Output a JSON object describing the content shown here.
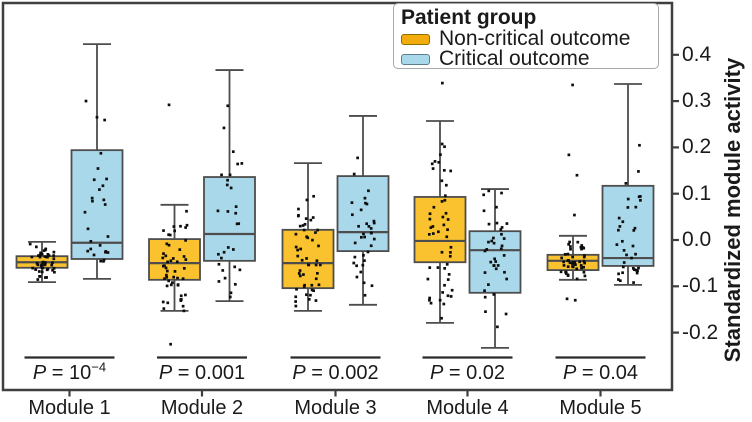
{
  "figure": {
    "background": "#ffffff",
    "panel_border_color": "#3f3f3f",
    "point_color": "#0d0d0d"
  },
  "legend": {
    "title": "Patient group",
    "entries": [
      {
        "label": "Non-critical outcome",
        "swatch_fill": "#F2AC0D",
        "swatch_border": "#8F6E00"
      },
      {
        "label": "Critical outcome",
        "swatch_fill": "#A9D8EA",
        "swatch_border": "#5E7E8C"
      }
    ]
  },
  "y_axis": {
    "title": "Standardized module activity",
    "side": "right",
    "tick_labels": [
      "0.4",
      "0.3",
      "0.2",
      "0.1",
      "0.0",
      "-0.1",
      "-0.2"
    ],
    "tick_values": [
      0.4,
      0.3,
      0.2,
      0.1,
      0.0,
      -0.1,
      -0.2
    ],
    "range": [
      -0.324,
      0.512
    ]
  },
  "chart_data": {
    "type": "boxplot",
    "categories": [
      "Module 1",
      "Module 2",
      "Module 3",
      "Module 4",
      "Module 5"
    ],
    "p_labels": [
      {
        "text": "P = 10",
        "sup": "−4"
      },
      {
        "text": "P = 0.001",
        "sup": ""
      },
      {
        "text": "P = 0.002",
        "sup": ""
      },
      {
        "text": "P = 0.02",
        "sup": ""
      },
      {
        "text": "P = 0.04",
        "sup": ""
      }
    ],
    "series": [
      {
        "name": "Non-critical outcome",
        "fill": "#F9C22E",
        "stroke": "#4d4d4d",
        "boxes": [
          {
            "q1": -0.06,
            "median": -0.048,
            "q3": -0.035,
            "whisker_lo": -0.091,
            "whisker_hi": -0.004,
            "n_points": 48,
            "outliers": []
          },
          {
            "q1": -0.086,
            "median": -0.05,
            "q3": 0.002,
            "whisker_lo": -0.153,
            "whisker_hi": 0.076,
            "n_points": 50,
            "outliers": [
              0.292,
              -0.225
            ]
          },
          {
            "q1": -0.104,
            "median": -0.05,
            "q3": 0.022,
            "whisker_lo": -0.153,
            "whisker_hi": 0.166,
            "n_points": 50,
            "outliers": []
          },
          {
            "q1": -0.048,
            "median": -0.002,
            "q3": 0.093,
            "whisker_lo": -0.179,
            "whisker_hi": 0.257,
            "n_points": 50,
            "outliers": [
              0.339
            ]
          },
          {
            "q1": -0.065,
            "median": -0.045,
            "q3": -0.032,
            "whisker_lo": -0.086,
            "whisker_hi": 0.009,
            "n_points": 46,
            "outliers": [
              0.335,
              0.184,
              0.14,
              0.054,
              -0.127,
              -0.13
            ]
          }
        ]
      },
      {
        "name": "Critical outcome",
        "fill": "#A9D8EA",
        "stroke": "#4d4d4d",
        "boxes": [
          {
            "q1": -0.041,
            "median": -0.006,
            "q3": 0.194,
            "whisker_lo": -0.084,
            "whisker_hi": 0.423,
            "n_points": 27,
            "outliers": []
          },
          {
            "q1": -0.045,
            "median": 0.013,
            "q3": 0.136,
            "whisker_lo": -0.132,
            "whisker_hi": 0.367,
            "n_points": 30,
            "outliers": []
          },
          {
            "q1": -0.024,
            "median": 0.017,
            "q3": 0.138,
            "whisker_lo": -0.14,
            "whisker_hi": 0.268,
            "n_points": 35,
            "outliers": []
          },
          {
            "q1": -0.114,
            "median": -0.022,
            "q3": 0.019,
            "whisker_lo": -0.233,
            "whisker_hi": 0.11,
            "n_points": 38,
            "outliers": []
          },
          {
            "q1": -0.056,
            "median": -0.039,
            "q3": 0.117,
            "whisker_lo": -0.097,
            "whisker_hi": 0.337,
            "n_points": 35,
            "outliers": []
          }
        ]
      }
    ]
  }
}
